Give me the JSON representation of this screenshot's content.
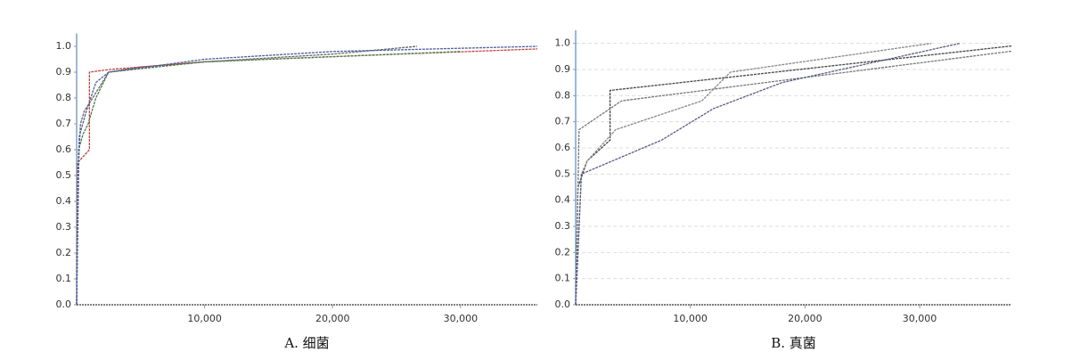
{
  "chart_data": [
    {
      "type": "line",
      "caption": "A. 细菌",
      "xlim": [
        0,
        36000
      ],
      "ylim": [
        0,
        1.05
      ],
      "xticks": [
        {
          "value": 10000,
          "label": "10,000"
        },
        {
          "value": 20000,
          "label": "20,000"
        },
        {
          "value": 30000,
          "label": "30,000"
        }
      ],
      "yticks": [
        {
          "value": 0,
          "label": "0.0"
        },
        0.1,
        0.2,
        0.3,
        0.4,
        0.5,
        0.6,
        0.7,
        0.8,
        0.9,
        {
          "value": 1,
          "label": "1.0"
        }
      ],
      "grid": false,
      "series": [
        {
          "color": "#666666",
          "x": [
            0,
            100,
            300,
            600,
            1000,
            1500,
            2500,
            5000,
            10000,
            20000,
            26600
          ],
          "values": [
            0,
            0.5,
            0.7,
            0.75,
            0.78,
            0.82,
            0.9,
            0.92,
            0.94,
            0.97,
            1.0
          ]
        },
        {
          "color": "#c04040",
          "x": [
            0,
            80,
            1000,
            1000,
            2500,
            10000,
            20000,
            36000
          ],
          "values": [
            0,
            0.55,
            0.6,
            0.9,
            0.91,
            0.94,
            0.96,
            0.99
          ]
        },
        {
          "color": "#4a7a4a",
          "x": [
            0,
            150,
            500,
            900,
            1500,
            2500,
            10000,
            20000,
            30000
          ],
          "values": [
            0,
            0.6,
            0.66,
            0.7,
            0.8,
            0.9,
            0.94,
            0.96,
            0.98
          ]
        },
        {
          "color": "#5060a0",
          "x": [
            0,
            200,
            700,
            1500,
            2500,
            10000,
            20000,
            36000
          ],
          "values": [
            0,
            0.65,
            0.74,
            0.86,
            0.9,
            0.95,
            0.98,
            1.0
          ]
        }
      ]
    },
    {
      "type": "line",
      "caption": "B. 真菌",
      "xlim": [
        0,
        38000
      ],
      "ylim": [
        0,
        1.05
      ],
      "xticks": [
        {
          "value": 10000,
          "label": "10,000"
        },
        {
          "value": 20000,
          "label": "20,000"
        },
        {
          "value": 30000,
          "label": "30,000"
        }
      ],
      "yticks": [
        {
          "value": 0,
          "label": "0.0"
        },
        0.1,
        0.2,
        0.3,
        0.4,
        0.5,
        0.6,
        0.7,
        0.8,
        0.9,
        {
          "value": 1,
          "label": "1.0"
        }
      ],
      "grid": true,
      "series": [
        {
          "color": "#444444",
          "x": [
            0,
            200,
            1000,
            3000,
            3000,
            38000
          ],
          "values": [
            0,
            0.45,
            0.55,
            0.63,
            0.82,
            0.99
          ]
        },
        {
          "color": "#777777",
          "x": [
            0,
            300,
            4000,
            38000
          ],
          "values": [
            0,
            0.67,
            0.78,
            0.97
          ]
        },
        {
          "color": "#888888",
          "x": [
            0,
            500,
            1000,
            3500,
            11000,
            13500,
            31000
          ],
          "values": [
            0,
            0.5,
            0.55,
            0.67,
            0.78,
            0.89,
            1.0
          ]
        },
        {
          "color": "#5a5a8a",
          "x": [
            0,
            500,
            7500,
            12000,
            18000,
            33500
          ],
          "values": [
            0,
            0.5,
            0.63,
            0.75,
            0.85,
            1.0
          ]
        }
      ]
    }
  ]
}
